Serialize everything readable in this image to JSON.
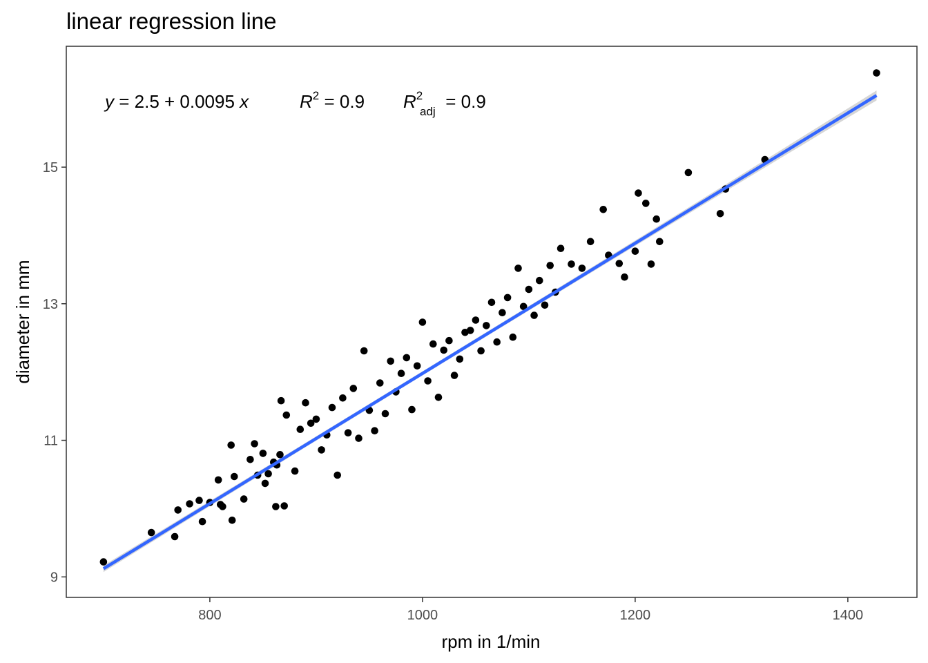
{
  "chart_data": {
    "type": "scatter",
    "title": "linear regression line",
    "xlabel": "rpm in 1/min",
    "ylabel": "diameter in mm",
    "xlim": [
      665,
      1465
    ],
    "ylim": [
      8.7,
      16.77
    ],
    "xticks": [
      800,
      1000,
      1200,
      1400
    ],
    "yticks": [
      9,
      11,
      13,
      15
    ],
    "grid": false,
    "point_color": "#000000",
    "line_color": "#3366FF",
    "ribbon_color": "#999999",
    "regression": {
      "intercept": 2.5,
      "slope": 0.0095,
      "x_range": [
        700,
        1427
      ],
      "fitted_y_range": [
        9.12,
        16.05
      ],
      "equation": {
        "y_var": "y",
        "eq_body": " = 2.5 + 0.0095 ",
        "x_var": "x",
        "r2_symbol": "R",
        "r2_sup": "2",
        "r2_value": " = 0.9",
        "r2adj_symbol": "R",
        "r2adj_sup": "2",
        "r2adj_sub": "adj",
        "r2adj_value": " = 0.9"
      }
    },
    "points": {
      "x": [
        700,
        745,
        767,
        770,
        781,
        790,
        793,
        800,
        808,
        810,
        812,
        820,
        821,
        823,
        832,
        838,
        842,
        845,
        850,
        852,
        855,
        860,
        862,
        863,
        866,
        867,
        870,
        872,
        880,
        885,
        890,
        895,
        900,
        905,
        910,
        915,
        920,
        925,
        930,
        935,
        940,
        945,
        950,
        955,
        960,
        965,
        970,
        975,
        980,
        985,
        990,
        995,
        1000,
        1005,
        1010,
        1015,
        1020,
        1025,
        1030,
        1035,
        1040,
        1045,
        1050,
        1055,
        1060,
        1065,
        1070,
        1075,
        1080,
        1085,
        1090,
        1095,
        1100,
        1105,
        1110,
        1115,
        1120,
        1125,
        1130,
        1140,
        1150,
        1158,
        1170,
        1175,
        1185,
        1190,
        1200,
        1203,
        1210,
        1215,
        1220,
        1223,
        1250,
        1280,
        1285,
        1322,
        1427
      ],
      "y": [
        9.22,
        9.65,
        9.59,
        9.98,
        10.07,
        10.12,
        9.81,
        10.09,
        10.42,
        10.06,
        10.03,
        10.93,
        9.83,
        10.47,
        10.14,
        10.72,
        10.95,
        10.49,
        10.81,
        10.37,
        10.51,
        10.68,
        10.03,
        10.64,
        10.79,
        11.58,
        10.04,
        11.37,
        10.55,
        11.16,
        11.55,
        11.25,
        11.31,
        10.86,
        11.08,
        11.48,
        10.49,
        11.62,
        11.11,
        11.76,
        11.03,
        12.31,
        11.44,
        11.14,
        11.84,
        11.39,
        12.16,
        11.71,
        11.98,
        12.21,
        11.45,
        12.09,
        12.73,
        11.87,
        12.41,
        11.63,
        12.32,
        12.46,
        11.95,
        12.19,
        12.58,
        12.61,
        12.76,
        12.31,
        12.68,
        13.02,
        12.44,
        12.87,
        13.09,
        12.51,
        13.52,
        12.96,
        13.21,
        12.83,
        13.34,
        12.98,
        13.56,
        13.17,
        13.81,
        13.58,
        13.52,
        13.91,
        14.38,
        13.71,
        13.59,
        13.39,
        13.77,
        14.62,
        14.47,
        13.58,
        14.24,
        13.91,
        14.92,
        14.32,
        14.68,
        15.11,
        16.38
      ]
    }
  }
}
